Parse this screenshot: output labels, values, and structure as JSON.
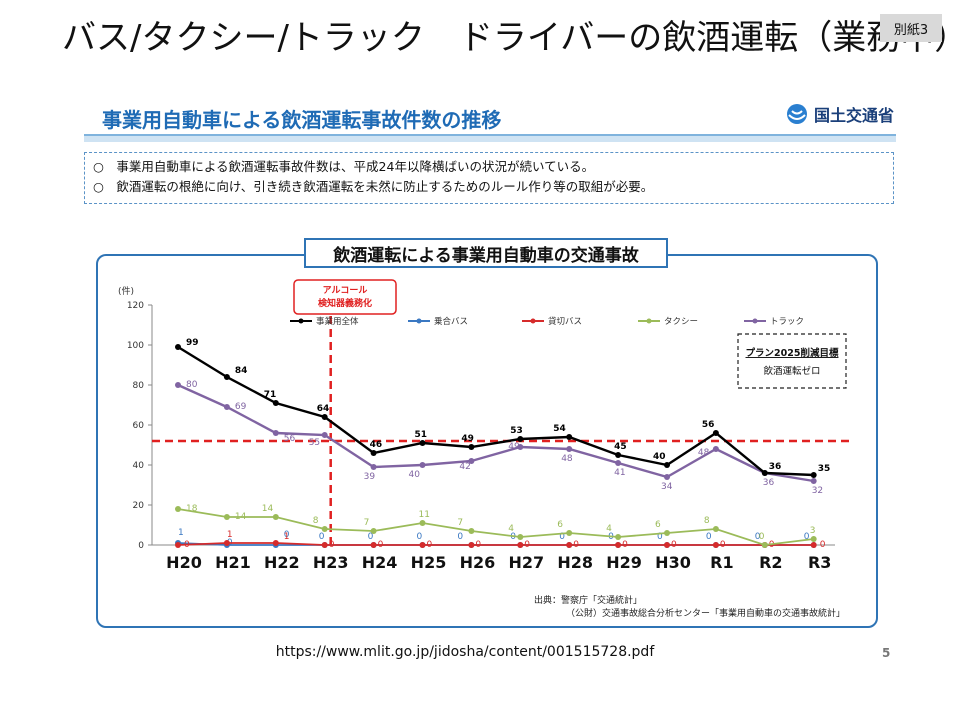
{
  "slide": {
    "title": "バス/タクシー/トラック　ドライバーの飲酒運転（業務中）",
    "badge": "別紙3",
    "url": "https://www.mlit.go.jp/jidosha/content/001515728.pdf",
    "page_number": "5"
  },
  "document": {
    "title": "事業用自動車による飲酒運転事故件数の推移",
    "ministry": "国土交通省",
    "notes": [
      "○　事業用自動車による飲酒運転事故件数は、平成24年以降横ばいの状況が続いている。",
      "○　飲酒運転の根絶に向け、引き続き飲酒運転を未然に防止するためのルール作り等の取組が必要。"
    ]
  },
  "chart_data": {
    "type": "line",
    "title": "飲酒運転による事業用自動車の交通事故",
    "ylabel": "(件)",
    "ylim": [
      0,
      120
    ],
    "yticks": [
      0,
      20,
      40,
      60,
      80,
      100,
      120
    ],
    "categories": [
      "H20",
      "H21",
      "H22",
      "H23",
      "H24",
      "H25",
      "H26",
      "H27",
      "H28",
      "H29",
      "H30",
      "R1",
      "R2",
      "R3"
    ],
    "series": [
      {
        "name": "事業用全体",
        "color": "#000000",
        "values": [
          99,
          84,
          71,
          64,
          46,
          51,
          49,
          53,
          54,
          45,
          40,
          56,
          36,
          35
        ]
      },
      {
        "name": "乗合バス",
        "color": "#3a78c2",
        "values": [
          1,
          0,
          0,
          0,
          0,
          0,
          0,
          0,
          0,
          0,
          0,
          0,
          0,
          0
        ]
      },
      {
        "name": "貸切バス",
        "color": "#d62b2b",
        "values": [
          0,
          1,
          1,
          0,
          0,
          0,
          0,
          0,
          0,
          0,
          0,
          0,
          0,
          0
        ]
      },
      {
        "name": "タクシー",
        "color": "#9bbb59",
        "values": [
          18,
          14,
          14,
          8,
          7,
          11,
          7,
          4,
          6,
          4,
          6,
          8,
          0,
          3
        ]
      },
      {
        "name": "トラック",
        "color": "#8064a2",
        "values": [
          80,
          69,
          56,
          55,
          39,
          40,
          42,
          49,
          48,
          41,
          34,
          48,
          36,
          32
        ]
      }
    ],
    "annotations": {
      "alcohol_mandate": {
        "text_line1": "アルコール",
        "text_line2": "検知器義務化",
        "year": "H23"
      },
      "target_box": {
        "line1": "プラン2025削減目標",
        "line2": "飲酒運転ゼロ"
      },
      "reference_level": 54
    },
    "source": {
      "line1": "出典：警察庁「交通統計」",
      "line2": "（公財）交通事故総合分析センター「事業用自動車の交通事故統計」"
    }
  }
}
